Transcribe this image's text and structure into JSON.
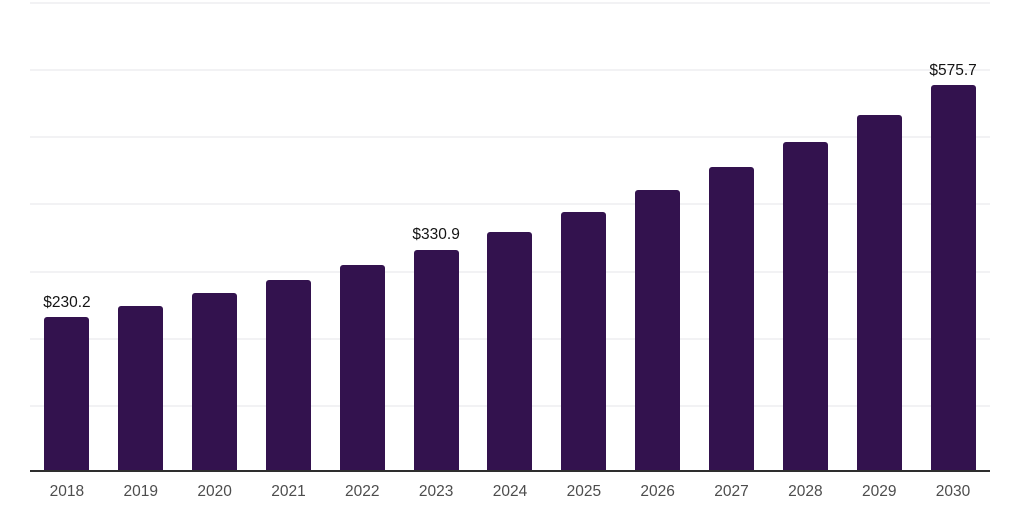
{
  "chart_data": {
    "type": "bar",
    "title": "",
    "categories": [
      "2018",
      "2019",
      "2020",
      "2021",
      "2022",
      "2023",
      "2024",
      "2025",
      "2026",
      "2027",
      "2028",
      "2029",
      "2030"
    ],
    "values": [
      230.2,
      247.5,
      266.2,
      286.2,
      307.8,
      330.9,
      358.1,
      387.6,
      419.5,
      454.0,
      491.4,
      531.8,
      575.7
    ],
    "value_prefix": "$",
    "data_labels": [
      {
        "index": 0,
        "text": "$230.2"
      },
      {
        "index": 5,
        "text": "$330.9"
      },
      {
        "index": 12,
        "text": "$575.7"
      }
    ],
    "xlabel": "",
    "ylabel": "",
    "ylim": [
      0,
      700
    ],
    "gridline_step": 100,
    "grid": true,
    "legend": "none",
    "y_axis_labels_visible": false,
    "colors": {
      "bar": "#33124E",
      "gridline": "#F2F2F4",
      "axis_line": "#2E2E2E",
      "tick_label": "#4D4D4D",
      "data_label": "#141414",
      "background": "#FFFFFF"
    }
  }
}
